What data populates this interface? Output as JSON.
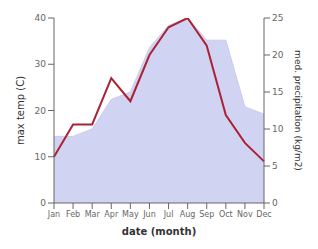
{
  "chart_data": {
    "type": "line",
    "categories": [
      "Jan",
      "Feb",
      "Mar",
      "Apr",
      "May",
      "Jun",
      "Jul",
      "Aug",
      "Sep",
      "Oct",
      "Nov",
      "Dec"
    ],
    "xlabel": "date (month)",
    "ylabel": "max temp (C)",
    "y2label": "med. precipitation (kg/m2)",
    "series": [
      {
        "type": "area",
        "axis": "y2",
        "color": "#c8ccf0",
        "values": [
          9,
          9,
          10,
          14,
          15,
          21,
          24,
          25,
          22,
          22,
          13,
          12
        ]
      },
      {
        "type": "line",
        "color": "#aa2233",
        "values": [
          10,
          17,
          17,
          27,
          22,
          32,
          38,
          40,
          34,
          19,
          13,
          9
        ]
      }
    ],
    "ylim": [
      0,
      40
    ],
    "yticks": [
      0,
      10,
      20,
      30,
      40
    ],
    "y2lim": [
      0,
      25
    ],
    "y2ticks": [
      0,
      5,
      10,
      15,
      20,
      25
    ],
    "grid": false
  }
}
